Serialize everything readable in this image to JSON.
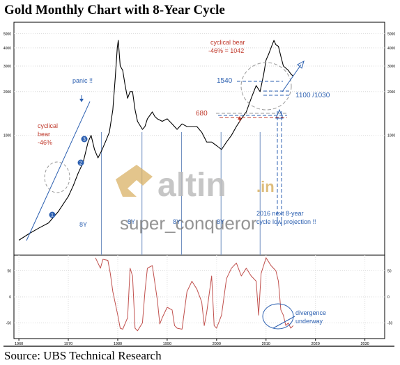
{
  "title": "Gold Monthly Chart with 8-Year Cycle",
  "source": "Source: UBS Technical Research",
  "colors": {
    "price_line": "#000000",
    "oscillator_line": "#c0504d",
    "annotation_red": "#c0392b",
    "annotation_blue": "#2b5fb0",
    "cycle_line": "#6f8fc0",
    "watermark_gold": "#d9b266",
    "watermark_gray": "#bdbdbd"
  },
  "watermark": {
    "brand": "altin",
    "suffix": ".in",
    "user": "super_conqueror"
  },
  "chart_data": [
    {
      "type": "line",
      "title": "Gold Monthly Chart with 8-Year Cycle",
      "y_scale": "log",
      "ylim": [
        150,
        6000
      ],
      "xlim": [
        1959,
        2034
      ],
      "y_tick_labels": [
        "5000",
        "4000",
        "3000",
        "2000",
        "1000"
      ],
      "y_ticks": [
        5000,
        4000,
        3000,
        2000,
        1000
      ],
      "series": [
        {
          "x": [
            1960,
            1962,
            1964,
            1966,
            1968,
            1970,
            1971,
            1972,
            1973,
            1974,
            1974.6,
            1975.3,
            1976,
            1976.7,
            1977.5,
            1978.3,
            1979,
            1979.5,
            1979.9,
            1980.1,
            1980.5,
            1981,
            1981.5,
            1982,
            1982.5,
            1983,
            1983.5,
            1984,
            1985,
            1985.5,
            1986,
            1987,
            1987.5,
            1988,
            1989,
            1990,
            1991,
            1992,
            1993,
            1994,
            1995,
            1996,
            1997,
            1998,
            1999,
            2000,
            2001,
            2002,
            2003,
            2004,
            2005,
            2006,
            2007,
            2008,
            2008.8,
            2009.5,
            2010,
            2010.5,
            2011,
            2011.6,
            2012,
            2012.5,
            2013,
            2013.5,
            2014,
            2014.5,
            2015,
            2015.5
          ],
          "y": [
            190,
            210,
            230,
            250,
            300,
            380,
            450,
            550,
            650,
            900,
            1000,
            800,
            700,
            780,
            900,
            1050,
            1500,
            2500,
            4000,
            4500,
            3000,
            2800,
            2200,
            1800,
            2000,
            2000,
            1500,
            1250,
            1100,
            1150,
            1300,
            1450,
            1350,
            1300,
            1250,
            1300,
            1200,
            1100,
            1200,
            1150,
            1150,
            1150,
            1050,
            900,
            900,
            850,
            800,
            900,
            1000,
            1150,
            1300,
            1450,
            1800,
            2200,
            2000,
            2600,
            3300,
            3600,
            4000,
            4500,
            4200,
            4100,
            3500,
            3000,
            2900,
            2800,
            2650,
            2550
          ]
        }
      ],
      "annotations": [
        {
          "text": "cyclical",
          "color": "red"
        },
        {
          "text": "bear",
          "color": "red"
        },
        {
          "text": "-46%",
          "color": "red"
        },
        {
          "text": "panic !!",
          "color": "blue"
        },
        {
          "text": "cyclical bear",
          "color": "red"
        },
        {
          "text": "-46% = 1042",
          "color": "red"
        },
        {
          "text": "1540",
          "color": "blue"
        },
        {
          "text": "1100 /1030",
          "color": "blue"
        },
        {
          "text": "680",
          "color": "red"
        },
        {
          "text": "2016 next 8-year",
          "color": "blue"
        },
        {
          "text": "cycle low projection !!",
          "color": "blue"
        }
      ],
      "wave_labels": [
        "1",
        "2",
        "3"
      ],
      "cycle_labels": [
        "8Y",
        "8Y",
        "8Y",
        "8Y",
        "8Y"
      ],
      "cycle_lows": [
        1976.7,
        1984.9,
        1992.9,
        2000.9,
        2008.8
      ]
    },
    {
      "type": "line",
      "ylim": [
        -80,
        80
      ],
      "y_tick_labels": [
        "50",
        "0",
        "-50"
      ],
      "y_ticks": [
        50,
        0,
        -50
      ],
      "x_tick_labels": [
        "1960",
        "1970",
        "1980",
        "1990",
        "2000",
        "2010",
        "2020",
        "2030"
      ],
      "x_ticks": [
        1960,
        1970,
        1980,
        1990,
        2000,
        2010,
        2020,
        2030
      ],
      "series": [
        {
          "x": [
            1975.5,
            1976,
            1976.5,
            1977,
            1978,
            1978.5,
            1979,
            1980,
            1980.5,
            1981,
            1982,
            1982.5,
            1983,
            1983.5,
            1984,
            1985,
            1985.5,
            1986,
            1987,
            1988,
            1988.5,
            1989,
            1990,
            1991,
            1991.5,
            1992,
            1993,
            1994,
            1995,
            1996,
            1997,
            1997.5,
            1998,
            1999,
            1999.5,
            2000,
            2001,
            2002,
            2003,
            2004,
            2005,
            2006,
            2007,
            2008,
            2008.5,
            2009,
            2010,
            2011,
            2012,
            2012.5,
            2013,
            2013.5,
            2014,
            2014.5,
            2015,
            2015.5
          ],
          "y": [
            75,
            65,
            55,
            72,
            70,
            45,
            10,
            -35,
            -60,
            -62,
            -40,
            55,
            40,
            -60,
            -65,
            -50,
            10,
            55,
            60,
            -5,
            -52,
            -40,
            -20,
            -25,
            -55,
            -60,
            -62,
            10,
            30,
            15,
            -10,
            -55,
            -30,
            40,
            -55,
            -60,
            -35,
            35,
            55,
            65,
            40,
            55,
            40,
            30,
            -35,
            45,
            75,
            60,
            50,
            30,
            -25,
            -35,
            -55,
            -50,
            -60,
            -55
          ]
        }
      ],
      "annotations": [
        {
          "text": "divergence",
          "color": "blue"
        },
        {
          "text": "underway",
          "color": "blue"
        }
      ]
    }
  ]
}
